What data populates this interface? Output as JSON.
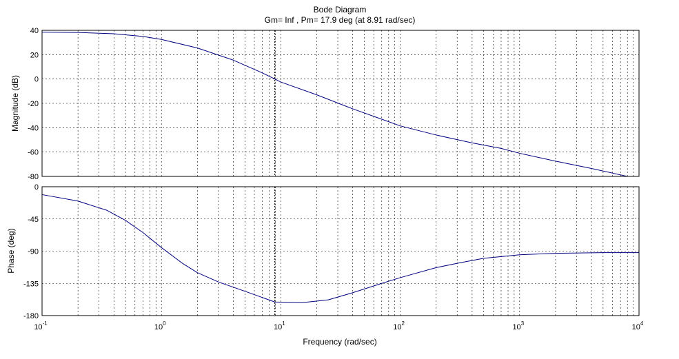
{
  "title": "Bode Diagram",
  "subtitle": "Gm= Inf ,  Pm= 17.9 deg (at 8.91 rad/sec)",
  "colors": {
    "curve": "#00007f",
    "axes": "#000000",
    "grid": "#000000",
    "background": "#ffffff"
  },
  "chart_data": [
    {
      "type": "line",
      "ylabel": "Magnitude (dB)",
      "xscale": "log",
      "xlim": [
        0.1,
        10000
      ],
      "ylim": [
        -80,
        40
      ],
      "yticks": [
        40,
        20,
        0,
        -20,
        -40,
        -60,
        -80
      ],
      "grid": true,
      "series": [
        {
          "x": [
            0.1,
            0.2,
            0.4,
            0.7,
            1,
            2,
            4,
            7,
            8.91,
            10,
            20,
            40,
            70,
            100,
            200,
            400,
            700,
            1000,
            2000,
            4000,
            8000
          ],
          "y": [
            38.5,
            38.2,
            37.2,
            35,
            32.5,
            25.5,
            15.5,
            5,
            0,
            -2.5,
            -13,
            -24.5,
            -33,
            -38.5,
            -46,
            -52.5,
            -57,
            -61,
            -67.5,
            -73.5,
            -80
          ]
        }
      ],
      "annotations": [
        {
          "type": "vertical-line",
          "x": 8.91
        }
      ]
    },
    {
      "type": "line",
      "ylabel": "Phase (deg)",
      "xlabel": "Frequency  (rad/sec)",
      "xscale": "log",
      "xlim": [
        0.1,
        10000
      ],
      "ylim": [
        -180,
        0
      ],
      "yticks": [
        0,
        -45,
        -90,
        -135,
        -180
      ],
      "xticks": [
        "10-1",
        "100",
        "101",
        "102",
        "103",
        "104"
      ],
      "grid": true,
      "series": [
        {
          "x": [
            0.1,
            0.2,
            0.35,
            0.5,
            0.7,
            1,
            1.5,
            2,
            3,
            5,
            8.91,
            15,
            25,
            40,
            70,
            100,
            200,
            300,
            500,
            1000,
            2000,
            5000,
            10000
          ],
          "y": [
            -11,
            -20,
            -33,
            -47,
            -64,
            -85,
            -107,
            -120,
            -133,
            -146,
            -161,
            -162,
            -158,
            -148,
            -135,
            -127,
            -113,
            -107,
            -100,
            -95,
            -93,
            -92,
            -92
          ]
        }
      ],
      "annotations": [
        {
          "type": "vertical-line",
          "x": 8.91
        }
      ]
    }
  ]
}
